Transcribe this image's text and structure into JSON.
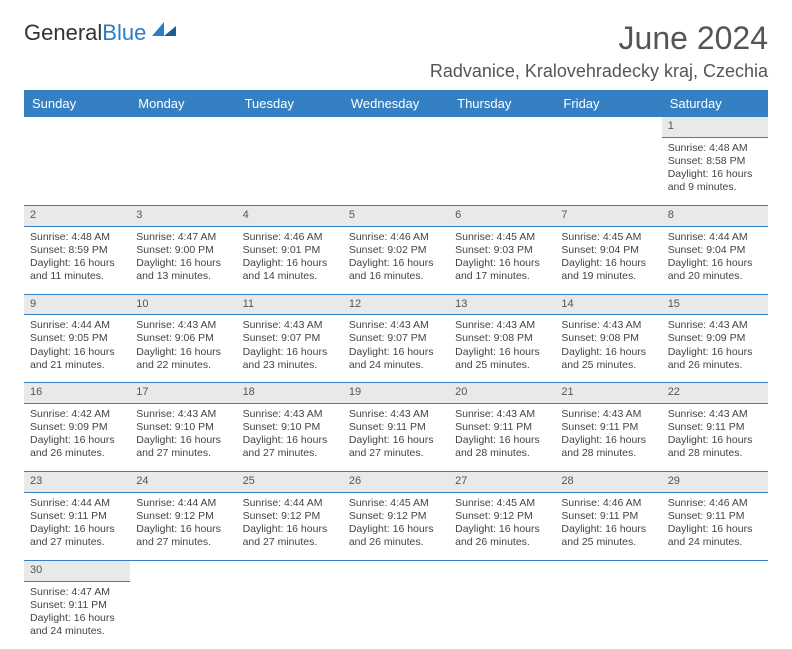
{
  "logo": {
    "word1": "General",
    "word2": "Blue",
    "accent_color": "#2a7ec5"
  },
  "header": {
    "month_title": "June 2024",
    "location": "Radvanice, Kralovehradecky kraj, Czechia"
  },
  "colors": {
    "header_bg": "#3580c2",
    "header_text": "#ffffff",
    "daynum_bg": "#e9e9e9",
    "border": "#3580c2"
  },
  "day_names": [
    "Sunday",
    "Monday",
    "Tuesday",
    "Wednesday",
    "Thursday",
    "Friday",
    "Saturday"
  ],
  "weeks": [
    {
      "nums": [
        "",
        "",
        "",
        "",
        "",
        "",
        "1"
      ],
      "cells": [
        [],
        [],
        [],
        [],
        [],
        [],
        [
          "Sunrise: 4:48 AM",
          "Sunset: 8:58 PM",
          "Daylight: 16 hours",
          "and 9 minutes."
        ]
      ]
    },
    {
      "nums": [
        "2",
        "3",
        "4",
        "5",
        "6",
        "7",
        "8"
      ],
      "cells": [
        [
          "Sunrise: 4:48 AM",
          "Sunset: 8:59 PM",
          "Daylight: 16 hours",
          "and 11 minutes."
        ],
        [
          "Sunrise: 4:47 AM",
          "Sunset: 9:00 PM",
          "Daylight: 16 hours",
          "and 13 minutes."
        ],
        [
          "Sunrise: 4:46 AM",
          "Sunset: 9:01 PM",
          "Daylight: 16 hours",
          "and 14 minutes."
        ],
        [
          "Sunrise: 4:46 AM",
          "Sunset: 9:02 PM",
          "Daylight: 16 hours",
          "and 16 minutes."
        ],
        [
          "Sunrise: 4:45 AM",
          "Sunset: 9:03 PM",
          "Daylight: 16 hours",
          "and 17 minutes."
        ],
        [
          "Sunrise: 4:45 AM",
          "Sunset: 9:04 PM",
          "Daylight: 16 hours",
          "and 19 minutes."
        ],
        [
          "Sunrise: 4:44 AM",
          "Sunset: 9:04 PM",
          "Daylight: 16 hours",
          "and 20 minutes."
        ]
      ]
    },
    {
      "nums": [
        "9",
        "10",
        "11",
        "12",
        "13",
        "14",
        "15"
      ],
      "cells": [
        [
          "Sunrise: 4:44 AM",
          "Sunset: 9:05 PM",
          "Daylight: 16 hours",
          "and 21 minutes."
        ],
        [
          "Sunrise: 4:43 AM",
          "Sunset: 9:06 PM",
          "Daylight: 16 hours",
          "and 22 minutes."
        ],
        [
          "Sunrise: 4:43 AM",
          "Sunset: 9:07 PM",
          "Daylight: 16 hours",
          "and 23 minutes."
        ],
        [
          "Sunrise: 4:43 AM",
          "Sunset: 9:07 PM",
          "Daylight: 16 hours",
          "and 24 minutes."
        ],
        [
          "Sunrise: 4:43 AM",
          "Sunset: 9:08 PM",
          "Daylight: 16 hours",
          "and 25 minutes."
        ],
        [
          "Sunrise: 4:43 AM",
          "Sunset: 9:08 PM",
          "Daylight: 16 hours",
          "and 25 minutes."
        ],
        [
          "Sunrise: 4:43 AM",
          "Sunset: 9:09 PM",
          "Daylight: 16 hours",
          "and 26 minutes."
        ]
      ]
    },
    {
      "nums": [
        "16",
        "17",
        "18",
        "19",
        "20",
        "21",
        "22"
      ],
      "cells": [
        [
          "Sunrise: 4:42 AM",
          "Sunset: 9:09 PM",
          "Daylight: 16 hours",
          "and 26 minutes."
        ],
        [
          "Sunrise: 4:43 AM",
          "Sunset: 9:10 PM",
          "Daylight: 16 hours",
          "and 27 minutes."
        ],
        [
          "Sunrise: 4:43 AM",
          "Sunset: 9:10 PM",
          "Daylight: 16 hours",
          "and 27 minutes."
        ],
        [
          "Sunrise: 4:43 AM",
          "Sunset: 9:11 PM",
          "Daylight: 16 hours",
          "and 27 minutes."
        ],
        [
          "Sunrise: 4:43 AM",
          "Sunset: 9:11 PM",
          "Daylight: 16 hours",
          "and 28 minutes."
        ],
        [
          "Sunrise: 4:43 AM",
          "Sunset: 9:11 PM",
          "Daylight: 16 hours",
          "and 28 minutes."
        ],
        [
          "Sunrise: 4:43 AM",
          "Sunset: 9:11 PM",
          "Daylight: 16 hours",
          "and 28 minutes."
        ]
      ]
    },
    {
      "nums": [
        "23",
        "24",
        "25",
        "26",
        "27",
        "28",
        "29"
      ],
      "cells": [
        [
          "Sunrise: 4:44 AM",
          "Sunset: 9:11 PM",
          "Daylight: 16 hours",
          "and 27 minutes."
        ],
        [
          "Sunrise: 4:44 AM",
          "Sunset: 9:12 PM",
          "Daylight: 16 hours",
          "and 27 minutes."
        ],
        [
          "Sunrise: 4:44 AM",
          "Sunset: 9:12 PM",
          "Daylight: 16 hours",
          "and 27 minutes."
        ],
        [
          "Sunrise: 4:45 AM",
          "Sunset: 9:12 PM",
          "Daylight: 16 hours",
          "and 26 minutes."
        ],
        [
          "Sunrise: 4:45 AM",
          "Sunset: 9:12 PM",
          "Daylight: 16 hours",
          "and 26 minutes."
        ],
        [
          "Sunrise: 4:46 AM",
          "Sunset: 9:11 PM",
          "Daylight: 16 hours",
          "and 25 minutes."
        ],
        [
          "Sunrise: 4:46 AM",
          "Sunset: 9:11 PM",
          "Daylight: 16 hours",
          "and 24 minutes."
        ]
      ]
    },
    {
      "nums": [
        "30",
        "",
        "",
        "",
        "",
        "",
        ""
      ],
      "cells": [
        [
          "Sunrise: 4:47 AM",
          "Sunset: 9:11 PM",
          "Daylight: 16 hours",
          "and 24 minutes."
        ],
        [],
        [],
        [],
        [],
        [],
        []
      ]
    }
  ]
}
